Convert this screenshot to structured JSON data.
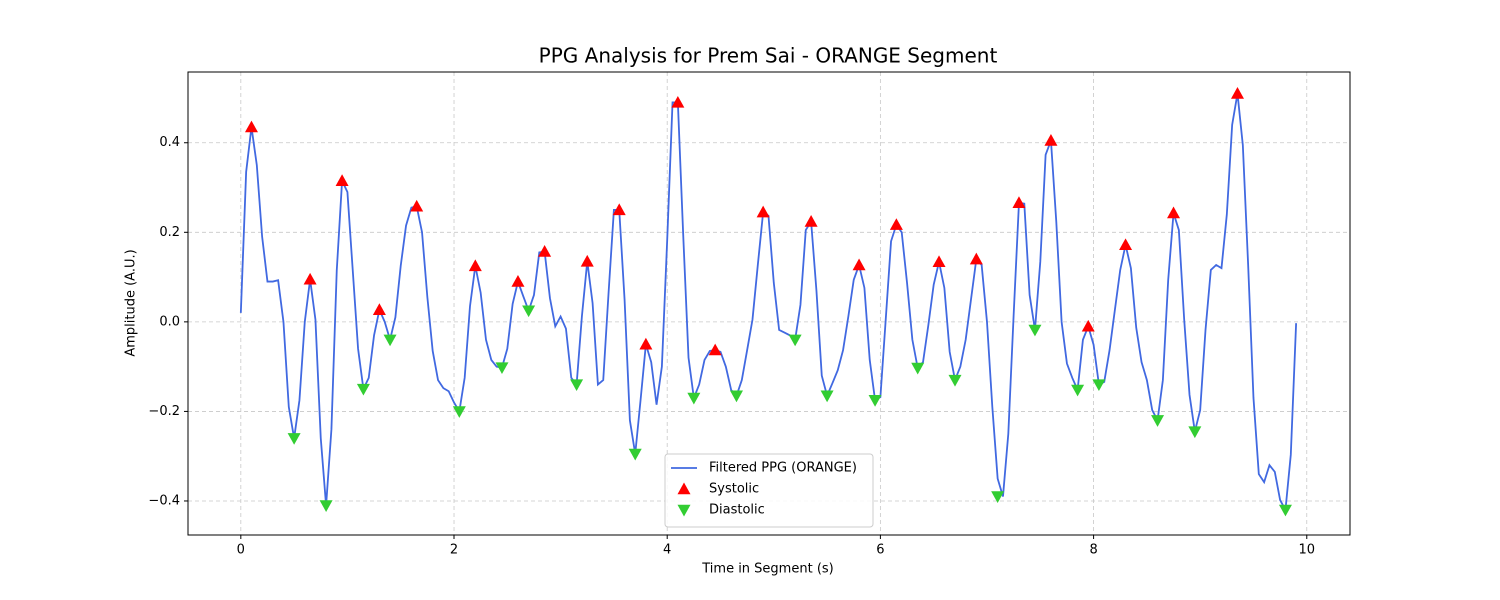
{
  "chart_data": {
    "type": "line",
    "title": "PPG Analysis for Prem Sai - ORANGE Segment",
    "x_label": "Time in Segment (s)",
    "y_label": "Amplitude (A.U.)",
    "xlim": [
      -0.4955,
      10.4055
    ],
    "ylim": [
      -0.476,
      0.558
    ],
    "xticks": [
      0,
      2,
      4,
      6,
      8,
      10
    ],
    "yticks": [
      {
        "value": -0.4,
        "label": "−0.4"
      },
      {
        "value": -0.2,
        "label": "−0.2"
      },
      {
        "value": 0,
        "label": "0.0"
      },
      0.2,
      0.4
    ],
    "grid": true,
    "legend": "lower center",
    "series": [
      {
        "name": "Filtered PPG (ORANGE)",
        "type": "line",
        "color": "#4169e1",
        "x": [
          0,
          0.05,
          0.1,
          0.15,
          0.2,
          0.25,
          0.3,
          0.35,
          0.4,
          0.45,
          0.5,
          0.55,
          0.6,
          0.65,
          0.7,
          0.75,
          0.8,
          0.85,
          0.9,
          0.95,
          1,
          1.05,
          1.1,
          1.15,
          1.2,
          1.25,
          1.3,
          1.35,
          1.4,
          1.45,
          1.5,
          1.55,
          1.6,
          1.65,
          1.7,
          1.75,
          1.8,
          1.85,
          1.9,
          1.95,
          2,
          2.05,
          2.1,
          2.15,
          2.2,
          2.25,
          2.3,
          2.35,
          2.4,
          2.45,
          2.5,
          2.55,
          2.6,
          2.65,
          2.7,
          2.75,
          2.8,
          2.85,
          2.9,
          2.95,
          3,
          3.05,
          3.1,
          3.15,
          3.2,
          3.25,
          3.3,
          3.35,
          3.4,
          3.45,
          3.5,
          3.55,
          3.6,
          3.65,
          3.7,
          3.75,
          3.8,
          3.85,
          3.9,
          3.95,
          4,
          4.05,
          4.1,
          4.15,
          4.2,
          4.25,
          4.3,
          4.35,
          4.4,
          4.45,
          4.5,
          4.55,
          4.6,
          4.65,
          4.7,
          4.75,
          4.8,
          4.85,
          4.9,
          4.95,
          5,
          5.05,
          5.1,
          5.15,
          5.2,
          5.25,
          5.3,
          5.35,
          5.4,
          5.45,
          5.5,
          5.55,
          5.6,
          5.65,
          5.7,
          5.75,
          5.8,
          5.85,
          5.9,
          5.95,
          6,
          6.05,
          6.1,
          6.15,
          6.2,
          6.25,
          6.3,
          6.35,
          6.4,
          6.45,
          6.5,
          6.55,
          6.6,
          6.65,
          6.7,
          6.75,
          6.8,
          6.85,
          6.9,
          6.95,
          7,
          7.05,
          7.1,
          7.15,
          7.2,
          7.25,
          7.3,
          7.35,
          7.4,
          7.45,
          7.5,
          7.55,
          7.6,
          7.65,
          7.7,
          7.75,
          7.8,
          7.85,
          7.9,
          7.95,
          8,
          8.05,
          8.1,
          8.15,
          8.2,
          8.25,
          8.3,
          8.35,
          8.4,
          8.45,
          8.5,
          8.55,
          8.6,
          8.65,
          8.7,
          8.75,
          8.8,
          8.85,
          8.9,
          8.95,
          9,
          9.05,
          9.1,
          9.15,
          9.2,
          9.25,
          9.3,
          9.35,
          9.4,
          9.45,
          9.5,
          9.55,
          9.6,
          9.65,
          9.7,
          9.75,
          9.8,
          9.85,
          9.9
        ],
        "values": [
          0.02,
          0.335,
          0.435,
          0.35,
          0.19,
          0.09,
          0.09,
          0.093,
          0,
          -0.19,
          -0.26,
          -0.175,
          0,
          0.095,
          0.005,
          -0.26,
          -0.41,
          -0.24,
          0.115,
          0.315,
          0.29,
          0.115,
          -0.06,
          -0.15,
          -0.125,
          -0.03,
          0.027,
          0,
          -0.04,
          0.01,
          0.125,
          0.215,
          0.255,
          0.258,
          0.2,
          0.055,
          -0.065,
          -0.13,
          -0.148,
          -0.155,
          -0.18,
          -0.2,
          -0.125,
          0.035,
          0.125,
          0.065,
          -0.04,
          -0.085,
          -0.1,
          -0.102,
          -0.06,
          0.04,
          0.09,
          0.057,
          0.025,
          0.06,
          0.155,
          0.157,
          0.053,
          -0.01,
          0.012,
          -0.015,
          -0.125,
          -0.14,
          0.013,
          0.135,
          0.042,
          -0.14,
          -0.13,
          0.065,
          0.25,
          0.25,
          0.05,
          -0.22,
          -0.295,
          -0.175,
          -0.05,
          -0.09,
          -0.185,
          -0.1,
          0.183,
          0.49,
          0.49,
          0.195,
          -0.08,
          -0.17,
          -0.14,
          -0.085,
          -0.065,
          -0.063,
          -0.067,
          -0.1,
          -0.152,
          -0.165,
          -0.13,
          -0.063,
          0.005,
          0.127,
          0.245,
          0.237,
          0.087,
          -0.018,
          -0.024,
          -0.03,
          -0.04,
          0.038,
          0.205,
          0.224,
          0.07,
          -0.12,
          -0.165,
          -0.137,
          -0.108,
          -0.063,
          0.013,
          0.094,
          0.127,
          0.076,
          -0.085,
          -0.175,
          -0.168,
          0.005,
          0.18,
          0.217,
          0.2,
          0.087,
          -0.04,
          -0.103,
          -0.09,
          -0.007,
          0.083,
          0.134,
          0.076,
          -0.067,
          -0.13,
          -0.1,
          -0.04,
          0.05,
          0.14,
          0.127,
          0,
          -0.19,
          -0.35,
          -0.39,
          -0.25,
          0.015,
          0.266,
          0.264,
          0.06,
          -0.018,
          0.134,
          0.373,
          0.405,
          0.224,
          0,
          -0.093,
          -0.125,
          -0.152,
          -0.04,
          -0.01,
          -0.051,
          -0.14,
          -0.134,
          -0.063,
          0.027,
          0.116,
          0.172,
          0.12,
          -0.013,
          -0.09,
          -0.13,
          -0.197,
          -0.22,
          -0.13,
          0.094,
          0.243,
          0.205,
          0.005,
          -0.163,
          -0.245,
          -0.197,
          -0.018,
          0.116,
          0.127,
          0.12,
          0.24,
          0.44,
          0.51,
          0.395,
          0.127,
          -0.17,
          -0.34,
          -0.358,
          -0.32,
          -0.335,
          -0.398,
          -0.42,
          -0.297,
          -0.003
        ]
      },
      {
        "name": "Systolic",
        "type": "scatter",
        "marker": "triangle-up",
        "color": "#ff0000",
        "x": [
          0.1,
          0.65,
          0.95,
          1.3,
          1.65,
          2.2,
          2.6,
          2.85,
          3.25,
          3.55,
          3.8,
          4.1,
          4.45,
          4.9,
          5.35,
          5.8,
          6.15,
          6.55,
          6.9,
          7.3,
          7.6,
          7.95,
          8.3,
          8.75,
          9.35
        ],
        "values": [
          0.435,
          0.095,
          0.315,
          0.027,
          0.258,
          0.125,
          0.09,
          0.157,
          0.135,
          0.25,
          -0.05,
          0.49,
          -0.063,
          0.245,
          0.224,
          0.127,
          0.217,
          0.134,
          0.14,
          0.266,
          0.405,
          -0.01,
          0.172,
          0.243,
          0.51
        ]
      },
      {
        "name": "Diastolic",
        "type": "scatter",
        "marker": "triangle-down",
        "color": "#32cd32",
        "x": [
          0.5,
          0.8,
          1.15,
          1.4,
          2.05,
          2.45,
          2.7,
          3.15,
          3.7,
          4.25,
          4.65,
          5.2,
          5.5,
          5.95,
          6.35,
          6.7,
          7.1,
          7.45,
          7.85,
          8.05,
          8.6,
          8.95,
          9.8
        ],
        "values": [
          -0.26,
          -0.41,
          -0.15,
          -0.04,
          -0.2,
          -0.102,
          0.025,
          -0.14,
          -0.295,
          -0.17,
          -0.165,
          -0.04,
          -0.165,
          -0.175,
          -0.103,
          -0.13,
          -0.39,
          -0.018,
          -0.152,
          -0.14,
          -0.22,
          -0.245,
          -0.42
        ]
      }
    ]
  }
}
